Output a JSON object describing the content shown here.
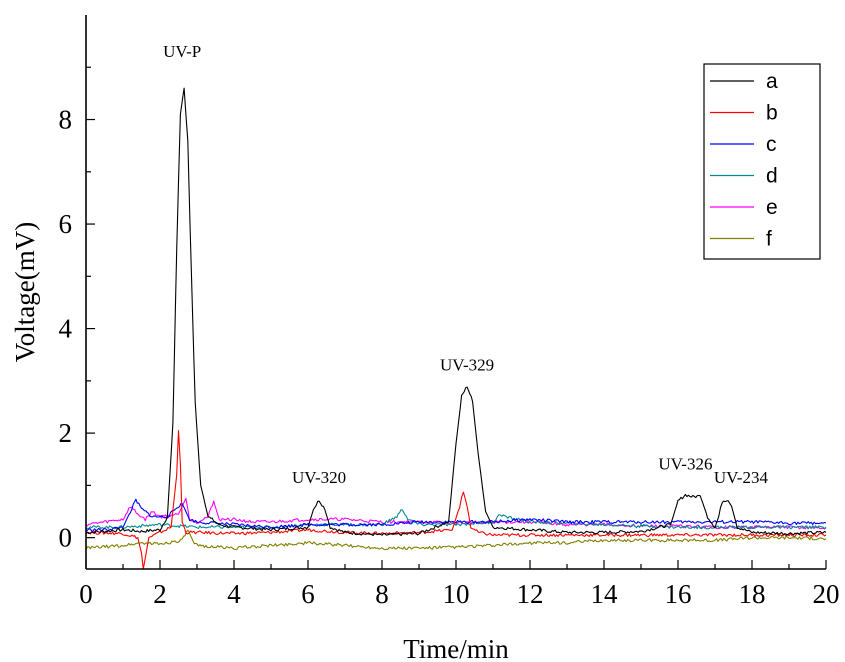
{
  "chart_data": {
    "type": "line",
    "title": "",
    "xlabel": "Time/min",
    "ylabel": "Voltage(mV)",
    "xlim": [
      0,
      20
    ],
    "ylim": [
      -0.6,
      10
    ],
    "xticks": [
      "0",
      "2",
      "4",
      "6",
      "8",
      "10",
      "12",
      "14",
      "16",
      "18",
      "20"
    ],
    "yticks": [
      "0",
      "2",
      "4",
      "6",
      "8"
    ],
    "grid": false,
    "legend_position": "top-right",
    "annotations": [
      {
        "text": "UV-P",
        "x": 2.6,
        "y": 9.2
      },
      {
        "text": "UV-320",
        "x": 6.3,
        "y": 1.05
      },
      {
        "text": "UV-329",
        "x": 10.3,
        "y": 3.2
      },
      {
        "text": "UV-326",
        "x": 16.2,
        "y": 1.3
      },
      {
        "text": "UV-234",
        "x": 17.7,
        "y": 1.05
      }
    ],
    "series": [
      {
        "name": "a",
        "color": "#000000",
        "x": [
          0,
          0.5,
          1.0,
          1.5,
          2.0,
          2.2,
          2.35,
          2.45,
          2.55,
          2.65,
          2.75,
          2.85,
          2.95,
          3.1,
          3.3,
          3.6,
          4.0,
          5.0,
          6.0,
          6.15,
          6.3,
          6.45,
          6.6,
          7.0,
          8.0,
          9.0,
          9.8,
          10.0,
          10.15,
          10.3,
          10.45,
          10.6,
          10.8,
          11.0,
          12.0,
          13.0,
          14.0,
          15.0,
          15.8,
          16.0,
          16.2,
          16.4,
          16.6,
          16.8,
          17.0,
          17.1,
          17.2,
          17.35,
          17.45,
          17.6,
          18.0,
          19.0,
          20.0
        ],
        "y": [
          0.1,
          0.12,
          0.15,
          0.12,
          0.15,
          0.4,
          2.2,
          5.5,
          8.1,
          8.6,
          7.6,
          5.0,
          2.6,
          1.0,
          0.4,
          0.25,
          0.2,
          0.15,
          0.2,
          0.55,
          0.72,
          0.55,
          0.2,
          0.1,
          0.05,
          0.08,
          0.3,
          1.8,
          2.7,
          2.9,
          2.6,
          1.6,
          0.5,
          0.2,
          0.15,
          0.1,
          0.1,
          0.12,
          0.25,
          0.7,
          0.82,
          0.78,
          0.8,
          0.4,
          0.2,
          0.4,
          0.7,
          0.73,
          0.6,
          0.2,
          0.1,
          0.08,
          0.1
        ]
      },
      {
        "name": "b",
        "color": "#ff0000",
        "x": [
          0,
          1.0,
          1.4,
          1.5,
          1.55,
          1.6,
          1.7,
          2.0,
          2.3,
          2.45,
          2.5,
          2.55,
          2.6,
          2.7,
          3.0,
          4.0,
          5.0,
          6.0,
          7.0,
          8.0,
          9.0,
          9.9,
          10.1,
          10.2,
          10.3,
          10.4,
          10.6,
          11.0,
          12.0,
          14.0,
          16.0,
          18.0,
          20.0
        ],
        "y": [
          0.1,
          0.08,
          0.0,
          -0.3,
          -0.6,
          -0.4,
          0.0,
          0.1,
          0.2,
          1.2,
          2.05,
          1.4,
          0.3,
          0.1,
          0.1,
          0.08,
          0.1,
          0.15,
          0.1,
          0.08,
          0.1,
          0.15,
          0.6,
          0.88,
          0.6,
          0.2,
          0.1,
          0.05,
          0.05,
          0.05,
          0.05,
          0.05,
          0.05
        ]
      },
      {
        "name": "c",
        "color": "#0000ff",
        "x": [
          0,
          0.5,
          1.0,
          1.2,
          1.35,
          1.5,
          1.8,
          2.2,
          2.5,
          2.6,
          2.8,
          3.0,
          4.0,
          5.0,
          6.0,
          7.0,
          8.0,
          9.0,
          10.0,
          11.0,
          12.0,
          13.0,
          14.0,
          15.0,
          16.0,
          17.0,
          18.0,
          19.0,
          20.0
        ],
        "y": [
          0.15,
          0.15,
          0.2,
          0.5,
          0.72,
          0.55,
          0.4,
          0.4,
          0.6,
          0.65,
          0.35,
          0.3,
          0.25,
          0.2,
          0.25,
          0.25,
          0.25,
          0.3,
          0.3,
          0.3,
          0.35,
          0.3,
          0.3,
          0.3,
          0.3,
          0.3,
          0.3,
          0.28,
          0.28
        ]
      },
      {
        "name": "d",
        "color": "#008b8b",
        "x": [
          0,
          1.0,
          2.0,
          3.0,
          4.0,
          5.0,
          6.0,
          7.0,
          8.0,
          8.4,
          8.55,
          8.7,
          9.0,
          10.0,
          11.0,
          11.2,
          11.4,
          11.7,
          12.0,
          14.0,
          16.0,
          18.0,
          20.0
        ],
        "y": [
          0.2,
          0.2,
          0.25,
          0.2,
          0.2,
          0.2,
          0.25,
          0.25,
          0.25,
          0.4,
          0.55,
          0.35,
          0.25,
          0.25,
          0.3,
          0.45,
          0.38,
          0.35,
          0.3,
          0.25,
          0.2,
          0.2,
          0.2
        ]
      },
      {
        "name": "e",
        "color": "#ff00ff",
        "x": [
          0,
          0.5,
          1.0,
          1.2,
          1.4,
          1.6,
          1.8,
          2.0,
          2.5,
          2.7,
          2.8,
          3.0,
          3.3,
          3.45,
          3.6,
          4.0,
          4.5,
          5.0,
          6.0,
          7.0,
          8.0,
          9.0,
          10.0,
          11.0,
          12.0,
          13.0,
          14.0,
          15.0,
          16.0,
          17.0,
          18.0,
          19.0,
          20.0
        ],
        "y": [
          0.25,
          0.3,
          0.35,
          0.6,
          0.45,
          0.35,
          0.5,
          0.4,
          0.45,
          0.75,
          0.35,
          0.3,
          0.4,
          0.7,
          0.35,
          0.35,
          0.3,
          0.3,
          0.35,
          0.35,
          0.3,
          0.3,
          0.28,
          0.3,
          0.3,
          0.25,
          0.25,
          0.22,
          0.22,
          0.2,
          0.2,
          0.2,
          0.18
        ]
      },
      {
        "name": "f",
        "color": "#808000",
        "x": [
          0,
          1.0,
          1.5,
          2.0,
          2.6,
          2.75,
          2.9,
          3.0,
          4.0,
          5.0,
          6.0,
          7.0,
          8.0,
          9.0,
          10.0,
          11.0,
          12.0,
          13.0,
          14.0,
          15.0,
          16.0,
          17.0,
          18.0,
          19.0,
          20.0
        ],
        "y": [
          -0.2,
          -0.15,
          -0.1,
          -0.12,
          -0.05,
          0.15,
          -0.1,
          -0.15,
          -0.2,
          -0.15,
          -0.1,
          -0.15,
          -0.2,
          -0.2,
          -0.18,
          -0.15,
          -0.1,
          -0.1,
          -0.05,
          -0.05,
          -0.05,
          -0.05,
          0.0,
          0.0,
          -0.02
        ]
      }
    ]
  }
}
